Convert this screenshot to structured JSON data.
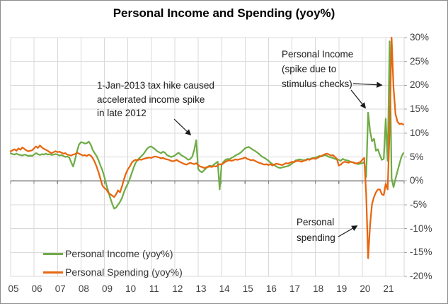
{
  "chart_data": {
    "type": "line",
    "title": "Personal Income and Spending (yoy%)",
    "x_unit": "month",
    "x_start": "2005-01",
    "x_end": "2021-10",
    "x_tick_labels": [
      "05",
      "06",
      "07",
      "08",
      "09",
      "10",
      "11",
      "12",
      "13",
      "14",
      "15",
      "16",
      "17",
      "18",
      "19",
      "20",
      "21"
    ],
    "y_ticks": [
      30,
      25,
      20,
      15,
      10,
      5,
      0,
      -5,
      -10,
      -15,
      -20
    ],
    "y_tick_labels": [
      "30%",
      "25%",
      "20%",
      "15%",
      "10%",
      "5%",
      "0%",
      "-5%",
      "-10%",
      "-15%",
      "-20%"
    ],
    "ylim": [
      -20,
      30
    ],
    "grid": true,
    "legend_position": "bottom-left",
    "series": [
      {
        "name": "Personal Income (yoy%)",
        "color": "#6FAC46",
        "values": [
          5.8,
          5.6,
          5.5,
          5.7,
          5.5,
          5.4,
          5.3,
          5.5,
          5.4,
          5.2,
          5.3,
          5.2,
          5.5,
          5.8,
          5.6,
          5.4,
          5.6,
          5.5,
          5.7,
          5.5,
          5.6,
          5.4,
          5.5,
          5.6,
          5.5,
          5.3,
          5.4,
          5.2,
          5.0,
          5.1,
          4.9,
          3.9,
          3.0,
          4.5,
          6.2,
          7.6,
          8.1,
          8.0,
          7.8,
          7.9,
          8.2,
          7.6,
          6.5,
          5.8,
          5.2,
          4.3,
          3.2,
          2.2,
          0.8,
          -0.8,
          -2.2,
          -3.6,
          -4.8,
          -5.8,
          -5.6,
          -5.0,
          -4.4,
          -3.6,
          -2.4,
          -1.4,
          -0.6,
          0.4,
          1.6,
          2.8,
          3.8,
          4.4,
          4.8,
          5.2,
          5.6,
          6.2,
          6.8,
          7.1,
          7.2,
          6.9,
          6.6,
          6.2,
          6.0,
          5.8,
          6.1,
          5.9,
          5.4,
          5.2,
          5.0,
          5.1,
          5.3,
          5.6,
          5.9,
          5.5,
          5.2,
          5.0,
          4.7,
          4.4,
          4.6,
          5.1,
          6.5,
          8.5,
          2.5,
          2.0,
          1.8,
          2.2,
          2.6,
          3.0,
          3.2,
          3.0,
          3.4,
          3.7,
          4.0,
          -1.8,
          3.4,
          4.0,
          4.4,
          4.6,
          4.5,
          4.8,
          5.0,
          5.3,
          5.5,
          5.7,
          6.0,
          6.4,
          6.8,
          7.0,
          7.1,
          6.8,
          6.5,
          6.3,
          6.0,
          5.7,
          5.3,
          5.0,
          4.8,
          4.5,
          4.2,
          3.8,
          3.5,
          3.3,
          3.0,
          2.8,
          2.7,
          2.8,
          2.9,
          3.0,
          3.1,
          3.3,
          3.6,
          4.0,
          4.3,
          4.4,
          4.5,
          4.4,
          4.3,
          4.4,
          4.6,
          4.5,
          4.7,
          4.8,
          4.9,
          5.0,
          5.2,
          5.1,
          5.3,
          5.4,
          5.2,
          5.0,
          4.9,
          4.8,
          4.6,
          4.5,
          4.4,
          4.2,
          4.6,
          4.4,
          4.3,
          4.2,
          4.0,
          3.9,
          3.8,
          3.6,
          3.5,
          3.6,
          3.7,
          3.9,
          0.8,
          14.3,
          10.4,
          8.3,
          8.8,
          6.3,
          6.6,
          5.4,
          4.4,
          4.6,
          13.0,
          4.2,
          29.2,
          0.5,
          -1.3,
          0.4,
          2.0,
          3.5,
          5.0,
          5.8
        ]
      },
      {
        "name": "Personal Spending (yoy%)",
        "color": "#E8660E",
        "values": [
          6.2,
          6.4,
          6.6,
          6.3,
          6.8,
          6.5,
          7.0,
          6.7,
          6.4,
          6.2,
          6.3,
          6.4,
          6.8,
          7.2,
          6.9,
          7.4,
          7.0,
          6.7,
          6.5,
          6.3,
          6.0,
          5.8,
          6.0,
          6.2,
          6.0,
          6.1,
          5.9,
          5.7,
          5.8,
          5.5,
          5.4,
          5.3,
          5.5,
          5.6,
          5.9,
          5.7,
          5.5,
          5.3,
          5.4,
          5.2,
          5.5,
          5.3,
          4.8,
          4.0,
          3.0,
          1.8,
          0.4,
          -1.0,
          -1.5,
          -1.8,
          -2.5,
          -2.8,
          -3.1,
          -3.4,
          -2.8,
          -2.0,
          -2.4,
          -1.2,
          0.3,
          1.5,
          2.4,
          3.0,
          3.8,
          4.2,
          4.4,
          4.3,
          4.5,
          4.4,
          4.6,
          4.7,
          4.8,
          4.9,
          4.8,
          5.0,
          5.1,
          5.0,
          4.9,
          4.7,
          4.8,
          4.6,
          4.5,
          4.4,
          4.2,
          4.1,
          4.2,
          4.4,
          4.1,
          3.9,
          3.7,
          3.5,
          3.4,
          3.6,
          3.8,
          3.6,
          3.5,
          3.7,
          3.3,
          3.0,
          2.9,
          2.7,
          2.8,
          2.9,
          3.0,
          2.9,
          3.1,
          3.0,
          3.2,
          3.5,
          3.4,
          3.7,
          4.0,
          4.2,
          4.3,
          4.2,
          4.3,
          4.5,
          4.4,
          4.5,
          4.6,
          4.7,
          4.9,
          4.6,
          4.5,
          4.3,
          4.4,
          4.2,
          4.0,
          3.8,
          3.7,
          3.5,
          3.4,
          3.5,
          3.3,
          3.5,
          3.2,
          3.4,
          3.6,
          3.5,
          3.4,
          3.3,
          3.5,
          3.7,
          3.6,
          3.8,
          4.0,
          3.9,
          4.1,
          4.2,
          4.1,
          4.0,
          4.2,
          4.3,
          4.5,
          4.4,
          4.6,
          4.7,
          4.6,
          4.8,
          5.0,
          5.2,
          5.4,
          5.6,
          5.7,
          5.5,
          5.3,
          5.4,
          5.0,
          4.6,
          3.2,
          3.4,
          3.8,
          4.0,
          3.9,
          3.8,
          4.0,
          3.9,
          3.7,
          3.6,
          3.8,
          3.9,
          4.4,
          4.8,
          -2.8,
          -16.2,
          -9.2,
          -4.8,
          -3.4,
          -2.4,
          -1.8,
          -1.8,
          -2.8,
          -3.0,
          -0.6,
          -1.8,
          11.0,
          30.0,
          19.5,
          14.0,
          12.4,
          11.9,
          12.0,
          11.8
        ]
      }
    ]
  },
  "annotations": {
    "tax_hike": {
      "lines": [
        "1-Jan-2013 tax hike caused",
        "accelerated income spike",
        "in late 2012"
      ]
    },
    "stimulus": {
      "lines": [
        "Personal Income",
        "(spike due to",
        "stimulus checks)"
      ]
    },
    "spending": {
      "lines": [
        "Personal",
        "spending"
      ]
    }
  }
}
